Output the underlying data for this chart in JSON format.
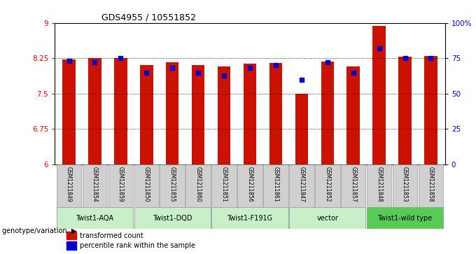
{
  "title": "GDS4955 / 10551852",
  "samples": [
    "GSM1211849",
    "GSM1211854",
    "GSM1211859",
    "GSM1211850",
    "GSM1211855",
    "GSM1211860",
    "GSM1211851",
    "GSM1211856",
    "GSM1211861",
    "GSM1211847",
    "GSM1211852",
    "GSM1211857",
    "GSM1211848",
    "GSM1211853",
    "GSM1211858"
  ],
  "bar_values": [
    8.22,
    8.25,
    8.26,
    8.1,
    8.16,
    8.1,
    8.08,
    8.13,
    8.15,
    7.5,
    8.18,
    8.07,
    8.93,
    8.28,
    8.3
  ],
  "percentile_values": [
    73,
    72,
    75,
    65,
    68,
    65,
    63,
    68,
    70,
    60,
    72,
    65,
    82,
    75,
    75
  ],
  "groups": [
    {
      "label": "Twist1-AQA",
      "start": 0,
      "end": 2,
      "color": "#c8f0c8"
    },
    {
      "label": "Twist1-DQD",
      "start": 3,
      "end": 5,
      "color": "#c8f0c8"
    },
    {
      "label": "Twist1-F191G",
      "start": 6,
      "end": 8,
      "color": "#c8f0c8"
    },
    {
      "label": "vector",
      "start": 9,
      "end": 11,
      "color": "#c8f0c8"
    },
    {
      "label": "Twist1-wild type",
      "start": 12,
      "end": 14,
      "color": "#55cc55"
    }
  ],
  "ylim_left": [
    6,
    9
  ],
  "ylim_right": [
    0,
    100
  ],
  "yticks_left": [
    6,
    6.75,
    7.5,
    8.25,
    9
  ],
  "ytick_labels_left": [
    "6",
    "6.75",
    "7.5",
    "8.25",
    "9"
  ],
  "yticks_right": [
    0,
    25,
    50,
    75,
    100
  ],
  "ytick_labels_right": [
    "0",
    "25",
    "50",
    "75",
    "100%"
  ],
  "bar_color": "#cc1100",
  "dot_color": "#0000cc",
  "bar_width": 0.5,
  "sample_cell_color": "#d0d0d0",
  "legend_transformed": "transformed count",
  "legend_percentile": "percentile rank within the sample",
  "genotype_label": "genotype/variation"
}
